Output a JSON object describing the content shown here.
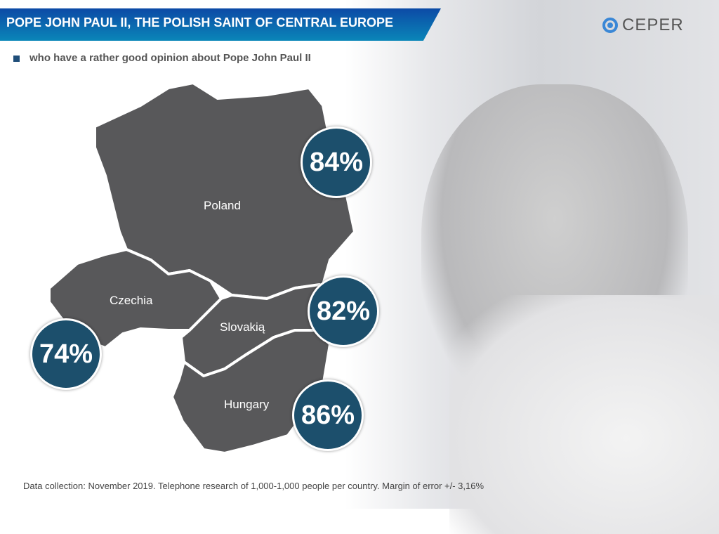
{
  "header": {
    "title": "POPE JOHN PAUL II, THE POLISH SAINT OF CENTRAL EUROPE",
    "logo": "CEPER"
  },
  "subtitle": "who have a rather good opinion about Pope John Paul II",
  "countries": [
    {
      "name": "Poland",
      "value": "84%"
    },
    {
      "name": "Czechia",
      "value": "74%"
    },
    {
      "name": "Slovakią",
      "value": "82%"
    },
    {
      "name": "Hungary",
      "value": "86%"
    }
  ],
  "colors": {
    "banner": "#0c4aa6",
    "badge": "#1c4f6c",
    "map": "#58585a"
  },
  "footer": "Data collection: November 2019. Telephone research of 1,000-1,000 people per country. Margin of error +/- 3,16%"
}
